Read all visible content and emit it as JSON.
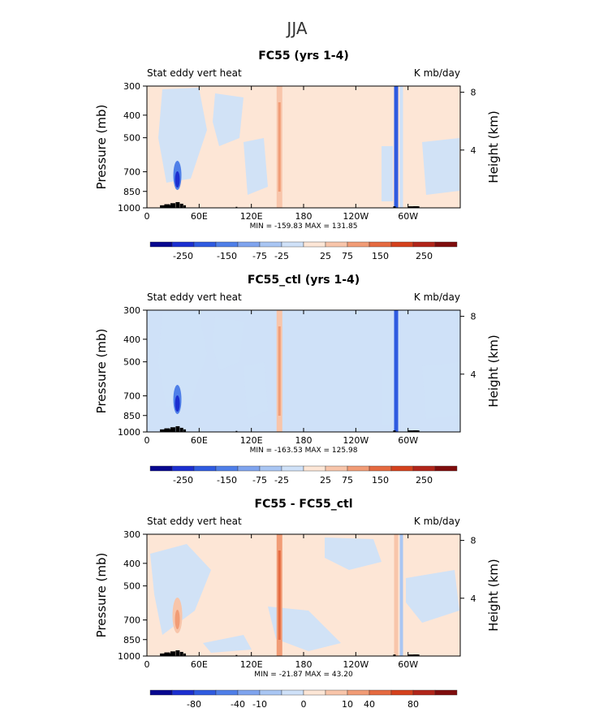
{
  "figure_title": "JJA",
  "panel_colors": [
    "#08088f",
    "#1c2fd0",
    "#2f5be0",
    "#4f7fe8",
    "#7fa4ee",
    "#a9c6f3",
    "#cfe1f8",
    "#fde6d6",
    "#f8c5aa",
    "#f19c76",
    "#e56a40",
    "#d4411d",
    "#b1251a",
    "#7f0d0d"
  ],
  "chart_data": [
    {
      "type": "heatmap",
      "title": "FC55 (yrs 1-4)",
      "left_label": "Stat eddy vert heat",
      "right_label": "K mb/day",
      "ylabel": "Pressure (mb)",
      "y2label": "Height (km)",
      "xticks": [
        "0",
        "60E",
        "120E",
        "180",
        "120W",
        "60W"
      ],
      "xtick_lon": [
        0,
        60,
        120,
        180,
        240,
        300
      ],
      "xlim": [
        0,
        360
      ],
      "yticks": [
        "300",
        "400",
        "500",
        "700",
        "850",
        "1000"
      ],
      "ytick_p": [
        300,
        400,
        500,
        700,
        850,
        1000
      ],
      "ylim": [
        1000,
        300
      ],
      "y2ticks": [
        "8",
        "4"
      ],
      "y2tick_km": [
        8,
        4
      ],
      "min_max_text": "MIN = -159.83   MAX = 131.85",
      "colorbar_labels": [
        "-250",
        "-150",
        "-75",
        "-25",
        "25",
        "75",
        "150",
        "250"
      ],
      "colorbar_values": [
        -250,
        -150,
        -75,
        -25,
        25,
        75,
        150,
        250
      ]
    },
    {
      "type": "heatmap",
      "title": "FC55_ctl (yrs 1-4)",
      "left_label": "Stat eddy vert heat",
      "right_label": "K mb/day",
      "ylabel": "Pressure (mb)",
      "y2label": "Height (km)",
      "xticks": [
        "0",
        "60E",
        "120E",
        "180",
        "120W",
        "60W"
      ],
      "xtick_lon": [
        0,
        60,
        120,
        180,
        240,
        300
      ],
      "xlim": [
        0,
        360
      ],
      "yticks": [
        "300",
        "400",
        "500",
        "700",
        "850",
        "1000"
      ],
      "ytick_p": [
        300,
        400,
        500,
        700,
        850,
        1000
      ],
      "ylim": [
        1000,
        300
      ],
      "y2ticks": [
        "8",
        "4"
      ],
      "y2tick_km": [
        8,
        4
      ],
      "min_max_text": "MIN = -163.53   MAX = 125.98",
      "colorbar_labels": [
        "-250",
        "-150",
        "-75",
        "-25",
        "25",
        "75",
        "150",
        "250"
      ],
      "colorbar_values": [
        -250,
        -150,
        -75,
        -25,
        25,
        75,
        150,
        250
      ]
    },
    {
      "type": "heatmap",
      "title": "FC55 - FC55_ctl",
      "left_label": "Stat eddy vert heat",
      "right_label": "K mb/day",
      "ylabel": "Pressure (mb)",
      "y2label": "Height (km)",
      "xticks": [
        "0",
        "60E",
        "120E",
        "180",
        "120W",
        "60W"
      ],
      "xtick_lon": [
        0,
        60,
        120,
        180,
        240,
        300
      ],
      "xlim": [
        0,
        360
      ],
      "yticks": [
        "300",
        "400",
        "500",
        "700",
        "850",
        "1000"
      ],
      "ytick_p": [
        300,
        400,
        500,
        700,
        850,
        1000
      ],
      "ylim": [
        1000,
        300
      ],
      "y2ticks": [
        "8",
        "4"
      ],
      "y2tick_km": [
        8,
        4
      ],
      "min_max_text": "MIN = -21.87   MAX = 43.20",
      "colorbar_labels": [
        "-80",
        "-40",
        "-10",
        "0",
        "10",
        "40",
        "80"
      ],
      "colorbar_values": [
        -80,
        -40,
        -10,
        0,
        10,
        40,
        80
      ]
    }
  ]
}
